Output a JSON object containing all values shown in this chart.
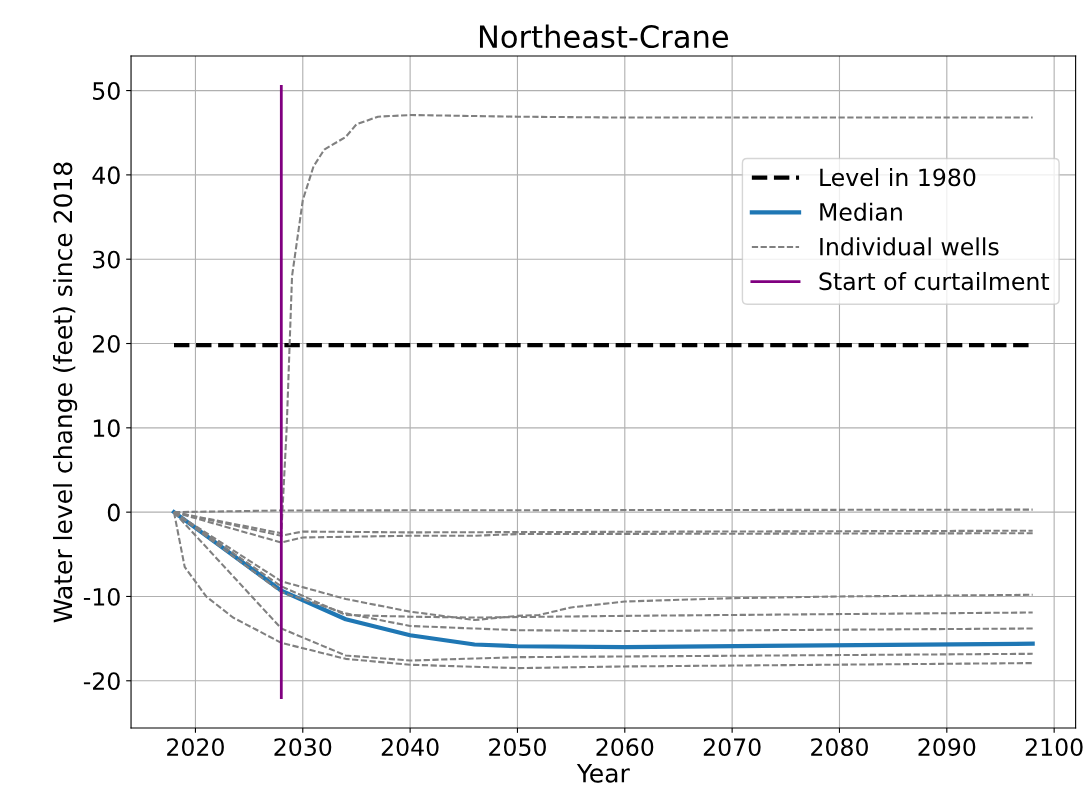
{
  "chart_data": {
    "type": "line",
    "title": "Northeast-Crane",
    "xlabel": "Year",
    "ylabel": "Water level change (feet) since 2018",
    "xlim": [
      2014,
      2102
    ],
    "ylim": [
      -25.6,
      54.1
    ],
    "xticks": [
      2020,
      2030,
      2040,
      2050,
      2060,
      2070,
      2080,
      2090,
      2100
    ],
    "yticks": [
      -20,
      -10,
      0,
      10,
      20,
      30,
      40,
      50
    ],
    "grid": true,
    "legend": "top right",
    "line_style": "dashed",
    "marker": "none",
    "series": [
      {
        "name": "Level in 1980",
        "color": "#000000",
        "line_style": "dashed",
        "x": [
          2018,
          2098
        ],
        "values": [
          19.8,
          19.8
        ]
      },
      {
        "name": "Median",
        "color": "#1f77b4",
        "line_style": "solid",
        "x": [
          2018,
          2028,
          2034,
          2040,
          2046,
          2050,
          2060,
          2098
        ],
        "values": [
          0,
          -9.3,
          -12.7,
          -14.6,
          -15.7,
          -15.9,
          -16.0,
          -15.6
        ]
      },
      {
        "name": "Individual wells",
        "color": "#808080",
        "x": [
          2018,
          2028,
          2028.5,
          2029,
          2030,
          2031,
          2032,
          2034,
          2035,
          2037,
          2040,
          2050,
          2060,
          2098
        ],
        "values": [
          0,
          -2.5,
          10,
          28,
          37,
          41,
          43,
          44.5,
          46,
          46.9,
          47.1,
          46.9,
          46.8,
          46.8
        ]
      },
      {
        "color": "#808080",
        "x": [
          2018,
          2028,
          2098
        ],
        "values": [
          0,
          0.2,
          0.3
        ]
      },
      {
        "color": "#808080",
        "x": [
          2018,
          2028,
          2030,
          2040,
          2098
        ],
        "values": [
          0,
          -2.8,
          -2.3,
          -2.4,
          -2.2
        ]
      },
      {
        "color": "#808080",
        "x": [
          2018,
          2028,
          2030,
          2040,
          2046,
          2050,
          2098
        ],
        "values": [
          0,
          -3.6,
          -3.0,
          -2.8,
          -2.8,
          -2.6,
          -2.5
        ]
      },
      {
        "color": "#808080",
        "x": [
          2018,
          2028,
          2034,
          2040,
          2046,
          2050,
          2052,
          2055,
          2060,
          2070,
          2080,
          2098
        ],
        "values": [
          0,
          -8.2,
          -10.3,
          -11.8,
          -12.8,
          -12.3,
          -12.2,
          -11.3,
          -10.6,
          -10.2,
          -10.0,
          -9.8
        ]
      },
      {
        "color": "#808080",
        "x": [
          2018,
          2028,
          2034,
          2040,
          2046,
          2060,
          2098
        ],
        "values": [
          0,
          -8.8,
          -12.2,
          -12.4,
          -12.5,
          -12.3,
          -11.9
        ]
      },
      {
        "color": "#808080",
        "x": [
          2018,
          2028,
          2034,
          2040,
          2050,
          2060,
          2098
        ],
        "values": [
          0,
          -9.5,
          -12.0,
          -13.5,
          -14.0,
          -14.1,
          -13.8
        ]
      },
      {
        "color": "#808080",
        "x": [
          2018,
          2028,
          2034,
          2040,
          2050,
          2098
        ],
        "values": [
          0,
          -13.8,
          -17.0,
          -17.6,
          -17.2,
          -16.8
        ]
      },
      {
        "color": "#808080",
        "x": [
          2018,
          2019,
          2021,
          2023.5,
          2028,
          2034,
          2040,
          2050,
          2060,
          2098
        ],
        "values": [
          0,
          -6.5,
          -10,
          -12.5,
          -15.5,
          -17.4,
          -18.1,
          -18.5,
          -18.3,
          -17.9
        ]
      },
      {
        "name": "Start of curtailment",
        "color": "#800080",
        "line_style": "solid",
        "x": [
          2028,
          2028
        ],
        "values": [
          -22,
          50.5
        ]
      }
    ]
  }
}
